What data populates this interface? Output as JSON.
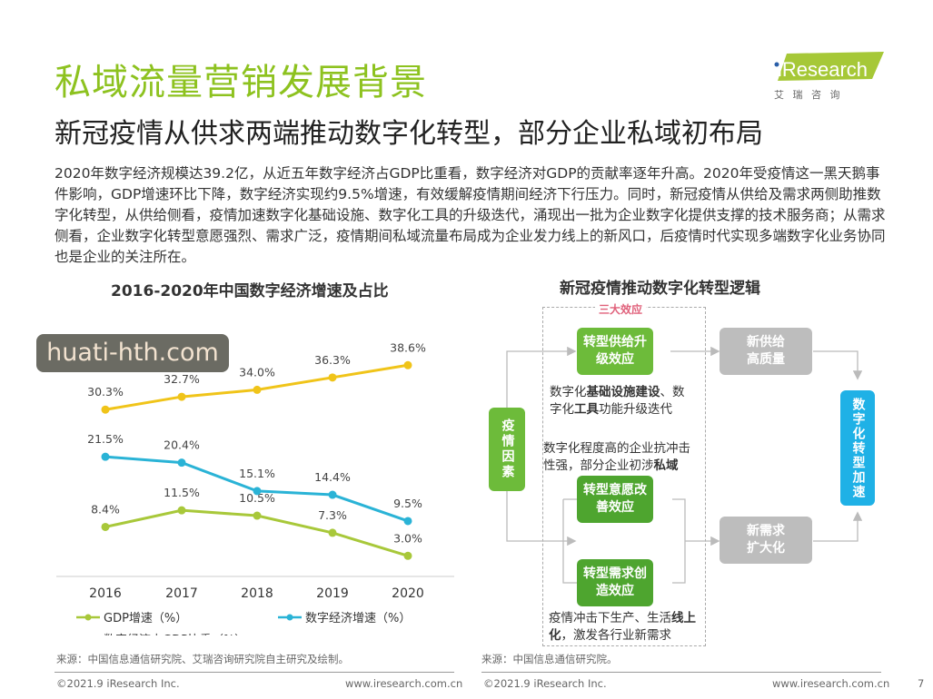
{
  "header": {
    "title": "私域流量营销发展背景",
    "subtitle": "新冠疫情从供求两端推动数字化转型，部分企业私域初布局",
    "logo_text": "iResearch",
    "logo_cn": "艾 瑞 咨 询"
  },
  "body_text": "2020年数字经济规模达39.2亿，从近五年数字经济占GDP比重看，数字经济对GDP的贡献率逐年升高。2020年受疫情这一黑天鹅事件影响，GDP增速环比下降，数字经济实现约9.5%增速，有效缓解疫情期间经济下行压力。同时，新冠疫情从供给及需求两侧助推数字化转型，从供给侧看，疫情加速数字化基础设施、数字化工具的升级迭代，涌现出一批为企业数字化提供支撑的技术服务商；从需求侧看，企业数字化转型意愿强烈、需求广泛，疫情期间私域流量布局成为企业发力线上的新风口，后疫情时代实现多端数字化业务协同也是企业的关注所在。",
  "chart_data": {
    "type": "line",
    "title": "2016-2020年中国数字经济增速及占比",
    "categories": [
      "2016",
      "2017",
      "2018",
      "2019",
      "2020"
    ],
    "series": [
      {
        "name": "GDP增速（%）",
        "color": "#a8c83a",
        "values": [
          8.4,
          11.5,
          10.5,
          7.3,
          3.0
        ],
        "labels": [
          "8.4%",
          "11.5%",
          "10.5%",
          "7.3%",
          "3.0%"
        ]
      },
      {
        "name": "数字经济增速（%）",
        "color": "#2ab3d6",
        "values": [
          21.5,
          20.4,
          15.1,
          14.4,
          9.5
        ],
        "labels": [
          "21.5%",
          "20.4%",
          "15.1%",
          "14.4%",
          "9.5%"
        ]
      },
      {
        "name": "数字经济占GDP比重（%）",
        "color": "#f0c419",
        "values": [
          30.3,
          32.7,
          34.0,
          36.3,
          38.6
        ],
        "labels": [
          "30.3%",
          "32.7%",
          "34.0%",
          "36.3%",
          "38.6%"
        ]
      }
    ],
    "legend": "bottom",
    "grid": false
  },
  "left_source": "来源：中国信息通信研究院、艾瑞咨询研究院自主研究及绘制。",
  "diagram": {
    "title": "新冠疫情推动数字化转型逻辑",
    "group_label": "三大效应",
    "cause": "疫情因素",
    "effect1": "转型供给升级效应",
    "effect2": "转型意愿改善效应",
    "effect3": "转型需求创造效应",
    "note1_a": "数字化",
    "note1_b": "基础设施建设",
    "note1_c": "、数字化",
    "note1_d": "工具",
    "note1_e": "功能升级迭代",
    "note2_a": "数字化程度高的企业抗冲击性强，部分企业初涉",
    "note2_b": "私域",
    "note3_a": "疫情冲击下生产、生活",
    "note3_b": "线上化",
    "note3_c": "，激发各行业新需求",
    "supply": "新供给高质量",
    "demand": "新需求扩大化",
    "result": "数字化转型加速"
  },
  "right_source": "来源：中国信息通信研究院。",
  "footer": {
    "copyright": "©2021.9 iResearch Inc.",
    "url": "www.iresearch.com.cn",
    "page": "7"
  },
  "watermark": "huati-hth.com",
  "colors": {
    "title": "#8dc21f",
    "flow_green": "#6dbb3a",
    "flow_dark_green": "#4ea52f",
    "flow_gray": "#bdbdbd",
    "flow_blue": "#1fb1e6"
  }
}
